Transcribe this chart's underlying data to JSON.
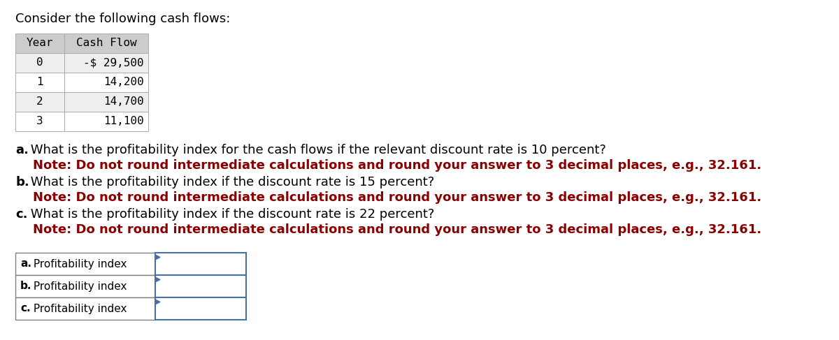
{
  "title": "Consider the following cash flows:",
  "title_fontsize": 13,
  "title_color": "#000000",
  "table_header": [
    "Year",
    "Cash Flow"
  ],
  "table_rows": [
    [
      "0",
      "-$ 29,500"
    ],
    [
      "1",
      "14,200"
    ],
    [
      "2",
      "14,700"
    ],
    [
      "3",
      "11,100"
    ]
  ],
  "table_font": "monospace",
  "table_fontsize": 11.5,
  "table_header_bg": "#cccccc",
  "table_row_bg_even": "#eeeeee",
  "table_row_bg_odd": "#ffffff",
  "questions": [
    {
      "letter": "a.",
      "main_text": " What is the profitability index for the cash flows if the relevant discount rate is 10 percent?",
      "note_text": "    Note: Do not round intermediate calculations and round your answer to 3 decimal places, e.g., 32.161.",
      "main_color": "#000000",
      "note_color": "#8b0000"
    },
    {
      "letter": "b.",
      "main_text": " What is the profitability index if the discount rate is 15 percent?",
      "note_text": "    Note: Do not round intermediate calculations and round your answer to 3 decimal places, e.g., 32.161.",
      "main_color": "#000000",
      "note_color": "#8b0000"
    },
    {
      "letter": "c.",
      "main_text": " What is the profitability index if the discount rate is 22 percent?",
      "note_text": "    Note: Do not round intermediate calculations and round your answer to 3 decimal places, e.g., 32.161.",
      "main_color": "#000000",
      "note_color": "#8b0000"
    }
  ],
  "answer_labels": [
    "a. Profitability index",
    "b. Profitability index",
    "c. Profitability index"
  ],
  "answer_border_color": "#808080",
  "answer_input_border_color": "#4a6fa5",
  "answer_fontsize": 11,
  "background_color": "#ffffff",
  "fig_width": 12.0,
  "fig_height": 4.87,
  "dpi": 100
}
